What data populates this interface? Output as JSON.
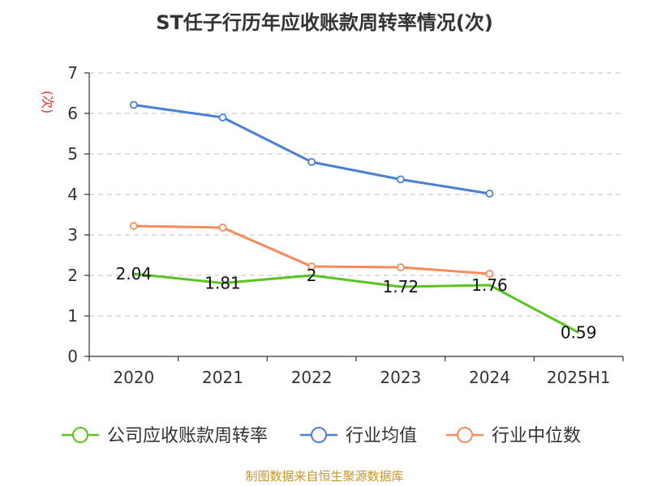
{
  "chart_data": {
    "type": "line",
    "title": "ST任子行历年应收账款周转率情况(次)",
    "ylabel": "(次)",
    "xlabel": "",
    "categories": [
      "2020",
      "2021",
      "2022",
      "2023",
      "2024",
      "2025H1"
    ],
    "ylim": [
      0,
      7
    ],
    "yticks": [
      "0",
      "1",
      "2",
      "3",
      "4",
      "5",
      "6",
      "7"
    ],
    "grid": true,
    "legend_position": "bottom",
    "series": [
      {
        "name": "公司应收账款周转率",
        "color": "#5cc41e",
        "values": [
          2.04,
          1.81,
          2,
          1.72,
          1.76,
          0.59
        ],
        "labels": [
          "2.04",
          "1.81",
          "2",
          "1.72",
          "1.76",
          "0.59"
        ],
        "markers": false
      },
      {
        "name": "行业均值",
        "color": "#4a7fd6",
        "values": [
          6.21,
          5.9,
          4.8,
          4.37,
          4.02,
          null
        ],
        "markers": true
      },
      {
        "name": "行业中位数",
        "color": "#f58c5a",
        "values": [
          3.22,
          3.18,
          2.22,
          2.2,
          2.04,
          null
        ],
        "markers": true
      }
    ],
    "source": "制图数据来自恒生聚源数据库"
  }
}
